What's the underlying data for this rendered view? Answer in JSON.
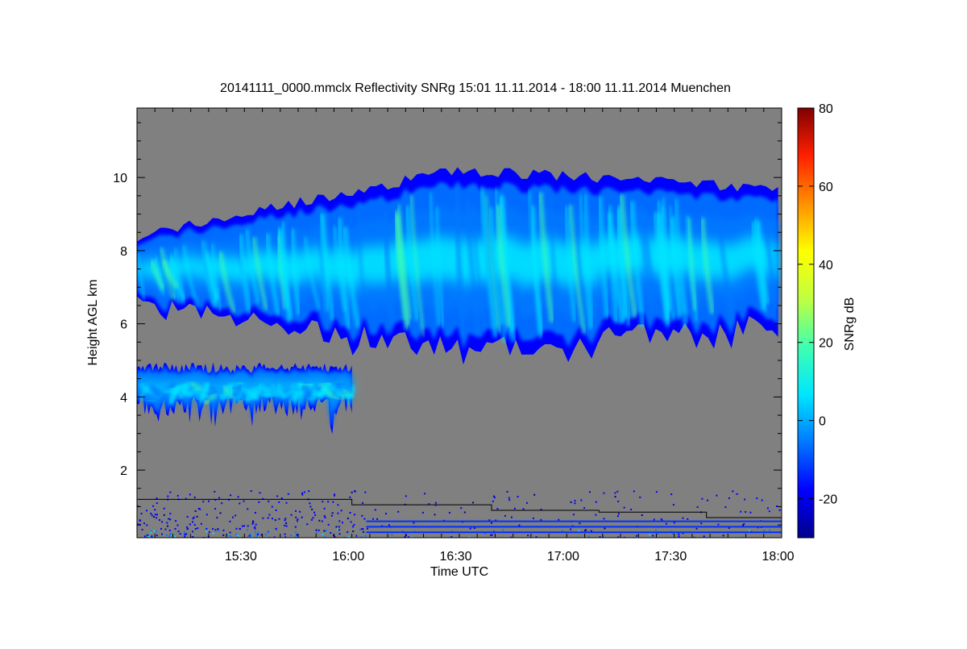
{
  "chart_data": {
    "type": "heatmap",
    "title": "20141111_0000.mmclx Reflectivity SNRg   15:01 11.11.2014 - 18:00 11.11.2014 Muenchen",
    "xlabel": "Time UTC",
    "ylabel": "Height AGL km",
    "x_range_minutes_utc": [
      901,
      1081
    ],
    "y_range_km": [
      0.15,
      11.9
    ],
    "x_ticks": [
      {
        "label": "15:30",
        "minutes": 930
      },
      {
        "label": "16:00",
        "minutes": 960
      },
      {
        "label": "16:30",
        "minutes": 990
      },
      {
        "label": "17:00",
        "minutes": 1020
      },
      {
        "label": "17:30",
        "minutes": 1050
      },
      {
        "label": "18:00",
        "minutes": 1080
      }
    ],
    "y_ticks": [
      {
        "label": "2",
        "value": 2
      },
      {
        "label": "4",
        "value": 4
      },
      {
        "label": "6",
        "value": 6
      },
      {
        "label": "8",
        "value": 8
      },
      {
        "label": "10",
        "value": 10
      }
    ],
    "colorbar": {
      "label": "SNRg dB",
      "range_db": [
        -30,
        80
      ],
      "ticks": [
        {
          "label": "-20",
          "value": -20
        },
        {
          "label": "0",
          "value": 0
        },
        {
          "label": "20",
          "value": 20
        },
        {
          "label": "40",
          "value": 40
        },
        {
          "label": "60",
          "value": 60
        },
        {
          "label": "80",
          "value": 80
        }
      ],
      "colors": [
        "#00008c",
        "#0000ff",
        "#0078ff",
        "#00e6ff",
        "#40ffb0",
        "#c0ff40",
        "#ffff00",
        "#ff9000",
        "#ff2000",
        "#800000"
      ]
    },
    "background_color": "#808080",
    "cloud_layers": [
      {
        "name": "upper-cloud",
        "start_min": 901,
        "end_min": 1080,
        "base_km_approx": [
          6.5,
          5.3,
          6.0
        ],
        "top_km_approx": [
          8.4,
          10.2,
          9.7
        ],
        "max_snr_db": 25
      },
      {
        "name": "mid-cloud",
        "start_min": 901,
        "end_min": 961,
        "base_km_approx": 3.8,
        "top_km_approx": 4.8,
        "max_snr_db": 20
      }
    ],
    "black_line_steps": [
      {
        "start_min": 901,
        "end_min": 961,
        "height_km": 1.2
      },
      {
        "start_min": 961,
        "end_min": 1000,
        "height_km": 1.05
      },
      {
        "start_min": 1000,
        "end_min": 1030,
        "height_km": 0.9
      },
      {
        "start_min": 1030,
        "end_min": 1060,
        "height_km": 0.85
      },
      {
        "start_min": 1060,
        "end_min": 1081,
        "height_km": 0.7
      }
    ]
  }
}
